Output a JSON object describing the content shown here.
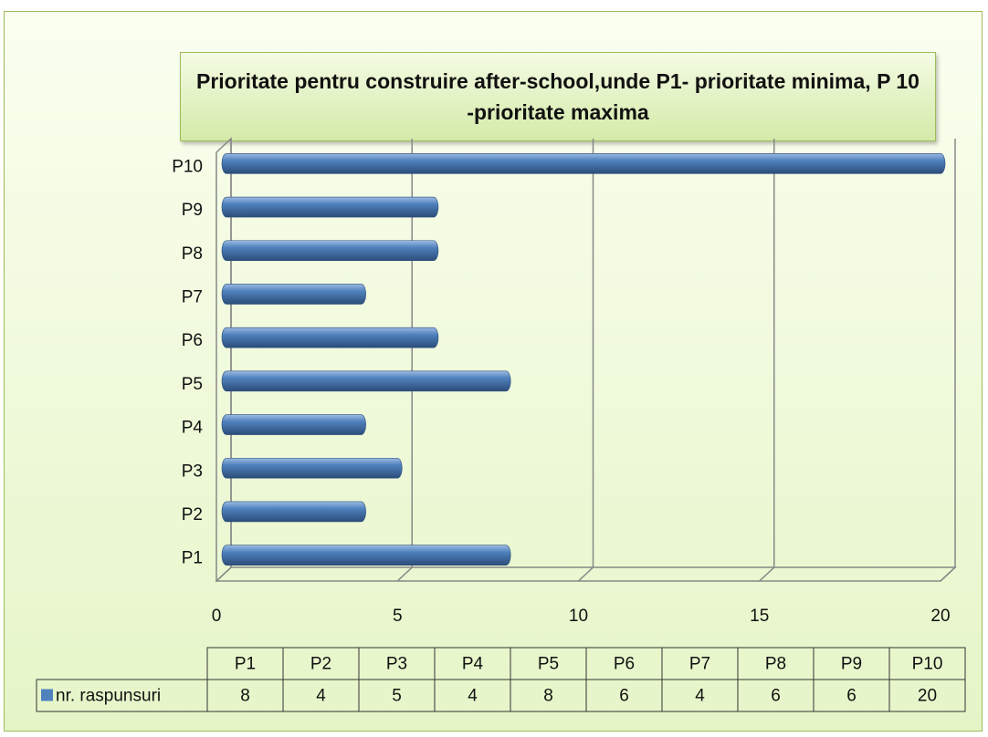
{
  "chart_data": {
    "type": "bar",
    "orientation": "horizontal",
    "title": "Prioritate pentru construire after-school,unde P1- prioritate minima, P 10 -prioritate maxima",
    "categories": [
      "P1",
      "P2",
      "P3",
      "P4",
      "P5",
      "P6",
      "P7",
      "P8",
      "P9",
      "P10"
    ],
    "series": [
      {
        "name": "nr. raspunsuri",
        "color": "#4f81bd",
        "values": [
          8,
          4,
          5,
          4,
          8,
          6,
          4,
          6,
          6,
          20
        ]
      }
    ],
    "xlim": [
      0,
      20
    ],
    "xticks": [
      0,
      5,
      10,
      15,
      20
    ],
    "grid": true
  }
}
